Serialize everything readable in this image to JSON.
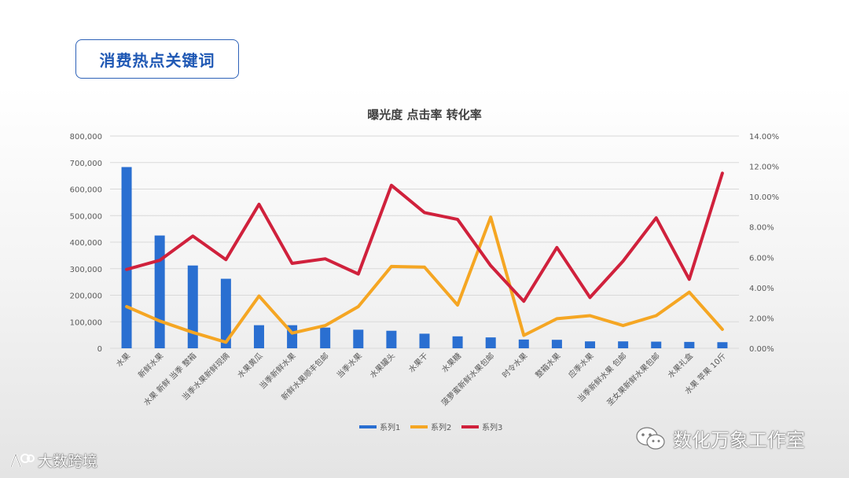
{
  "header": {
    "title": "消费热点关键词"
  },
  "watermarks": {
    "right": "数化万象工作室",
    "left": "大数跨境"
  },
  "colors": {
    "series1": "#2a6fd1",
    "series2": "#f5a623",
    "series3": "#d0213c",
    "grid": "#d9d9d9",
    "axis_text": "#595959"
  },
  "chart_data": {
    "type": "bar+line",
    "title": "曝光度 点击率 转化率",
    "categories": [
      "水果",
      "新鲜水果",
      "水果 新鲜 当季 整箱",
      "当季水果新鲜现摘",
      "水果黄瓜",
      "当季新鲜水果",
      "新鲜水果顺丰包邮",
      "当季水果",
      "水果罐头",
      "水果干",
      "水果糖",
      "菠萝蜜新鲜水果包邮",
      "时令水果",
      "整箱水果",
      "应季水果",
      "当季新鲜水果 包邮",
      "圣女果新鲜水果包邮",
      "水果礼盒",
      "水果 苹果 10斤"
    ],
    "series": [
      {
        "name": "系列1",
        "axis": "left",
        "kind": "bar",
        "values": [
          683000,
          425000,
          312000,
          262000,
          87000,
          87000,
          78000,
          70000,
          66000,
          55000,
          45000,
          41000,
          33000,
          32000,
          26000,
          26000,
          25000,
          24000,
          23000
        ]
      },
      {
        "name": "系列2",
        "axis": "right",
        "kind": "line",
        "values": [
          0.0275,
          0.018,
          0.0105,
          0.004,
          0.0345,
          0.01,
          0.015,
          0.0275,
          0.054,
          0.0535,
          0.0285,
          0.0865,
          0.0085,
          0.0195,
          0.0215,
          0.015,
          0.0215,
          0.037,
          0.0125
        ]
      },
      {
        "name": "系列3",
        "axis": "right",
        "kind": "line",
        "values": [
          0.052,
          0.058,
          0.074,
          0.0585,
          0.095,
          0.056,
          0.059,
          0.049,
          0.1075,
          0.0895,
          0.085,
          0.0545,
          0.031,
          0.0665,
          0.0335,
          0.0575,
          0.086,
          0.0455,
          0.1155
        ]
      }
    ],
    "ylim_left": [
      0,
      800000
    ],
    "yticks_left": [
      "0",
      "100,000",
      "200,000",
      "300,000",
      "400,000",
      "500,000",
      "600,000",
      "700,000",
      "800,000"
    ],
    "ylim_right": [
      0,
      0.14
    ],
    "yticks_right": [
      "0.00%",
      "2.00%",
      "4.00%",
      "6.00%",
      "8.00%",
      "10.00%",
      "12.00%",
      "14.00%"
    ],
    "legend": [
      {
        "label": "系列1"
      },
      {
        "label": "系列2"
      },
      {
        "label": "系列3"
      }
    ],
    "legend_position": "bottom"
  }
}
